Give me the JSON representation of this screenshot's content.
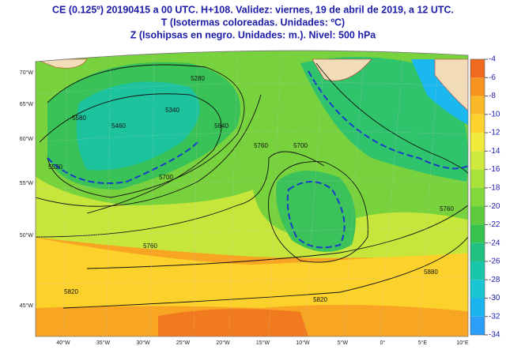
{
  "header": {
    "lines": [
      "CE (0.125º) 20190415 a 00 UTC.  H+108. Validez: viernes, 19 de abril de 2019,  a  12 UTC.",
      "T (Isotermas coloreadas. Unidades: ºC)",
      "Z (Isohipsas en negro. Unidades: m.).   Nivel: 500 hPa"
    ]
  },
  "colorbar": {
    "ticks": [
      -4,
      -6,
      -8,
      -10,
      -12,
      -14,
      -16,
      -18,
      -20,
      -22,
      -24,
      -26,
      -28,
      -30,
      -32,
      -34
    ],
    "colors": [
      "#f06a1e",
      "#f79420",
      "#fbb829",
      "#fdd22f",
      "#f0ea3b",
      "#cfea3c",
      "#a8e23a",
      "#82d73b",
      "#5ecb3d",
      "#36c24f",
      "#20c07e",
      "#19c6aa",
      "#18c6d2",
      "#1ab4ee",
      "#2a9ef8"
    ]
  },
  "lon_labels": [
    "40°W",
    "35°W",
    "30°W",
    "25°W",
    "20°W",
    "15°W",
    "10°W",
    "5°W",
    "0°",
    "5°E",
    "10°E"
  ],
  "lat_labels": [
    "70°W",
    "65°W",
    "60°W",
    "55°W",
    "50°W",
    "45°W"
  ],
  "contour_labels": [
    "5460",
    "5580",
    "5700",
    "5640",
    "5520",
    "5280",
    "5340",
    "5760",
    "5820",
    "5760",
    "5700",
    "5880",
    "5820",
    "5760"
  ]
}
